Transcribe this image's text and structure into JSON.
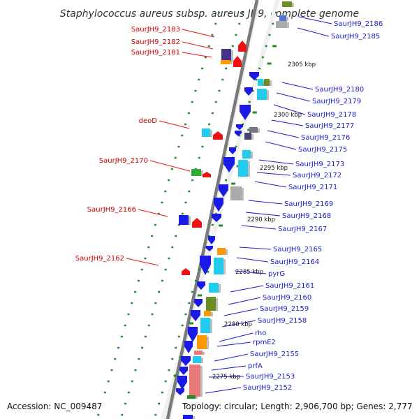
{
  "title": "Staphylococcus aureus subsp. aureus JH9, complete genome",
  "accession": "Accession: NC_009487",
  "topology": "Topology: circular; Length: 2,906,700 bp; Genes: 2,777",
  "colors": {
    "backbone": "#7a7a7a",
    "forward_label": "#cc0000",
    "reverse_label": "#1a1acc",
    "blue_cds": "#1a1ae6",
    "red_cds": "#ee1111",
    "cyan_cds": "#22ccee",
    "olive_cds": "#6b8e23",
    "orange_cds": "#ff9900",
    "gray_cds": "#aaaaaa",
    "pink_cds": "#e87a7a",
    "green_tick": "#2a8a2a"
  },
  "scale_labels": [
    "2305 kbp",
    "2300 kbp",
    "2295 kbp",
    "2290 kbp",
    "2285 kbp",
    "2280 kbp",
    "2275 kbp"
  ],
  "forward_labels": [
    "SaurJH9_2183",
    "SaurJH9_2182",
    "SaurJH9_2181",
    "deoD",
    "SaurJH9_2170",
    "SaurJH9_2166",
    "SaurJH9_2162"
  ],
  "reverse_labels": [
    "SaurJH9_2186",
    "SaurJH9_2185",
    "SaurJH9_2180",
    "SaurJH9_2179",
    "SaurJH9_2178",
    "SaurJH9_2177",
    "SaurJH9_2176",
    "SaurJH9_2175",
    "SaurJH9_2173",
    "SaurJH9_2172",
    "SaurJH9_2171",
    "SaurJH9_2169",
    "SaurJH9_2168",
    "SaurJH9_2167",
    "SaurJH9_2165",
    "SaurJH9_2164",
    "pyrG",
    "SaurJH9_2161",
    "SaurJH9_2160",
    "SaurJH9_2159",
    "SaurJH9_2158",
    "rho",
    "rpmE2",
    "SaurJH9_2155",
    "prfA",
    "SaurJH9_2153",
    "SaurJH9_2152"
  ]
}
